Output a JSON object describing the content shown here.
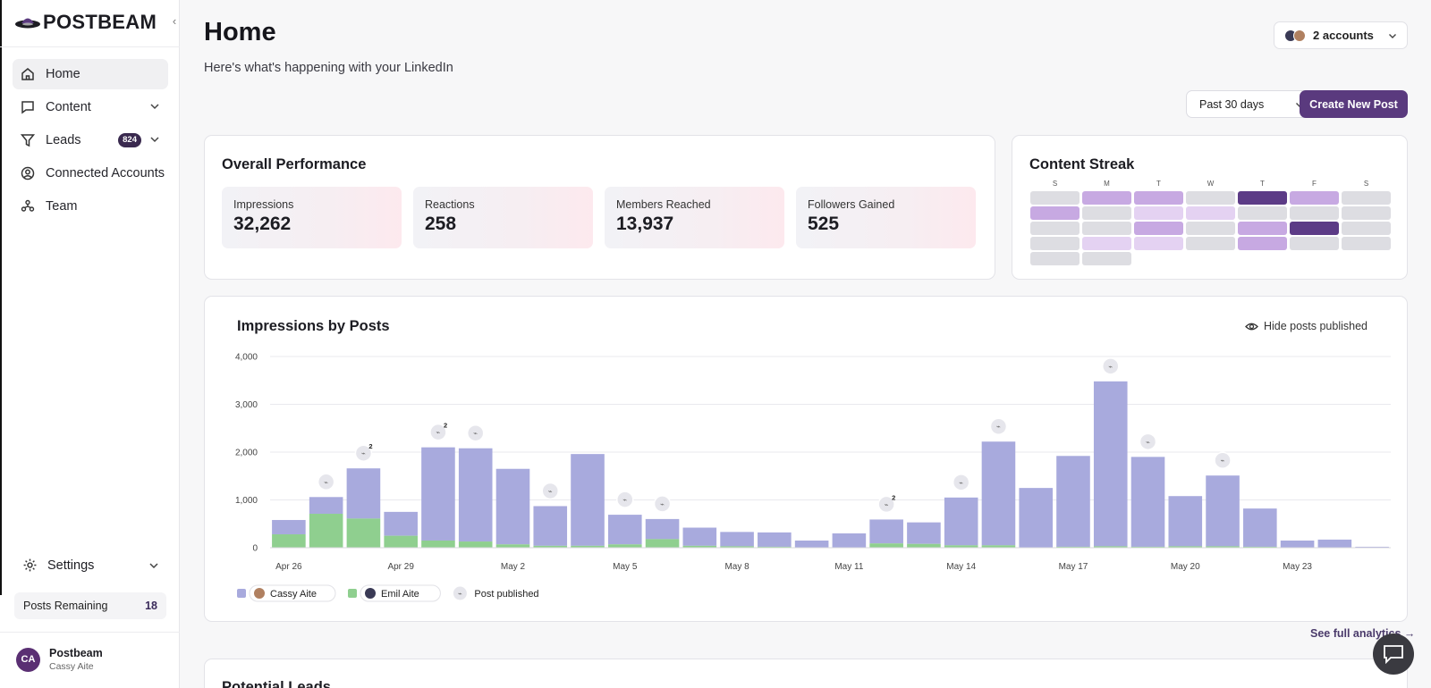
{
  "sidebar": {
    "logo_text": "POSTBEAM",
    "items": [
      {
        "label": "Home",
        "icon": "home-icon",
        "active": true
      },
      {
        "label": "Content",
        "icon": "message-square-icon"
      },
      {
        "label": "Leads",
        "icon": "filter-icon",
        "badge": "824"
      },
      {
        "label": "Connected Accounts",
        "icon": "user-circle-icon"
      },
      {
        "label": "Team",
        "icon": "team-icon"
      }
    ],
    "settings_label": "Settings",
    "posts_remaining_label": "Posts Remaining",
    "posts_remaining_value": "18",
    "user": {
      "initials": "CA",
      "name": "Postbeam",
      "sub": "Cassy Aite"
    }
  },
  "header": {
    "title": "Home",
    "subtitle": "Here's what's happening with your LinkedIn",
    "accounts_label": "2 accounts",
    "range_label": "Past 30 days",
    "create_label": "Create New Post"
  },
  "performance": {
    "title": "Overall Performance",
    "metrics": [
      {
        "label": "Impressions",
        "value": "32,262"
      },
      {
        "label": "Reactions",
        "value": "258"
      },
      {
        "label": "Members Reached",
        "value": "13,937"
      },
      {
        "label": "Followers Gained",
        "value": "525"
      }
    ]
  },
  "streak": {
    "title": "Content Streak",
    "days": [
      "S",
      "M",
      "T",
      "W",
      "T",
      "F",
      "S"
    ],
    "levels": [
      [
        0,
        2,
        2,
        0,
        4,
        2,
        0
      ],
      [
        2,
        0,
        1,
        1,
        0,
        0,
        0
      ],
      [
        0,
        0,
        2,
        0,
        2,
        4,
        0
      ],
      [
        0,
        1,
        1,
        0,
        2,
        0,
        0
      ],
      [
        0,
        0,
        null,
        null,
        null,
        null,
        null
      ]
    ],
    "colors": [
      "#dddde2",
      "#e4d2f2",
      "#c7a9e2",
      "#a883cc",
      "#5c3b86"
    ]
  },
  "impressions": {
    "title": "Impressions by Posts",
    "hide_label": "Hide posts published",
    "see_full": "See full analytics",
    "colors": {
      "cassy": "#a8aadd",
      "emil": "#8fcf8f",
      "axis": "#e9e9ee"
    }
  },
  "chart_data": {
    "type": "bar",
    "stacked": true,
    "title": "Impressions by Posts",
    "ylim": [
      0,
      4000
    ],
    "yticks": [
      0,
      1000,
      2000,
      3000,
      4000
    ],
    "ytick_labels": [
      "0",
      "1,000",
      "2,000",
      "3,000",
      "4,000"
    ],
    "categories": [
      "Apr 26",
      "Apr 27",
      "Apr 28",
      "Apr 29",
      "Apr 30",
      "May 1",
      "May 2",
      "May 3",
      "May 4",
      "May 5",
      "May 6",
      "May 7",
      "May 8",
      "May 9",
      "May 10",
      "May 11",
      "May 12",
      "May 13",
      "May 14",
      "May 15",
      "May 16",
      "May 17",
      "May 18",
      "May 19",
      "May 20",
      "May 21",
      "May 22",
      "May 23",
      "May 24",
      "May 25"
    ],
    "xtick_labels": [
      "Apr 26",
      "Apr 29",
      "May 2",
      "May 5",
      "May 8",
      "May 11",
      "May 14",
      "May 17",
      "May 20",
      "May 23"
    ],
    "series": [
      {
        "name": "Cassy Aite",
        "color": "#a8aadd",
        "values": [
          300,
          350,
          1050,
          500,
          1950,
          1950,
          1580,
          830,
          1920,
          620,
          420,
          380,
          300,
          300,
          150,
          300,
          500,
          450,
          1000,
          2170,
          1250,
          1900,
          3450,
          1880,
          1050,
          1480,
          800,
          150,
          170,
          20
        ]
      },
      {
        "name": "Emil Aite",
        "color": "#8fcf8f",
        "values": [
          280,
          710,
          610,
          250,
          150,
          130,
          70,
          40,
          40,
          70,
          180,
          40,
          30,
          20,
          0,
          0,
          90,
          80,
          50,
          50,
          0,
          20,
          30,
          20,
          30,
          30,
          20,
          0,
          0,
          0
        ]
      }
    ],
    "post_markers": [
      {
        "index": 1,
        "count": 1
      },
      {
        "index": 2,
        "count": 2
      },
      {
        "index": 4,
        "count": 2
      },
      {
        "index": 5,
        "count": 1
      },
      {
        "index": 7,
        "count": 1
      },
      {
        "index": 9,
        "count": 1
      },
      {
        "index": 10,
        "count": 1
      },
      {
        "index": 16,
        "count": 2
      },
      {
        "index": 18,
        "count": 1
      },
      {
        "index": 19,
        "count": 1
      },
      {
        "index": 22,
        "count": 1
      },
      {
        "index": 23,
        "count": 1
      },
      {
        "index": 25,
        "count": 1
      }
    ],
    "legend": [
      {
        "label": "Cassy Aite",
        "color": "#a8aadd"
      },
      {
        "label": "Emil Aite",
        "color": "#8fcf8f"
      },
      {
        "label": "Post published",
        "color": "#e6e6ec"
      }
    ]
  },
  "leads": {
    "title": "Potential Leads"
  }
}
